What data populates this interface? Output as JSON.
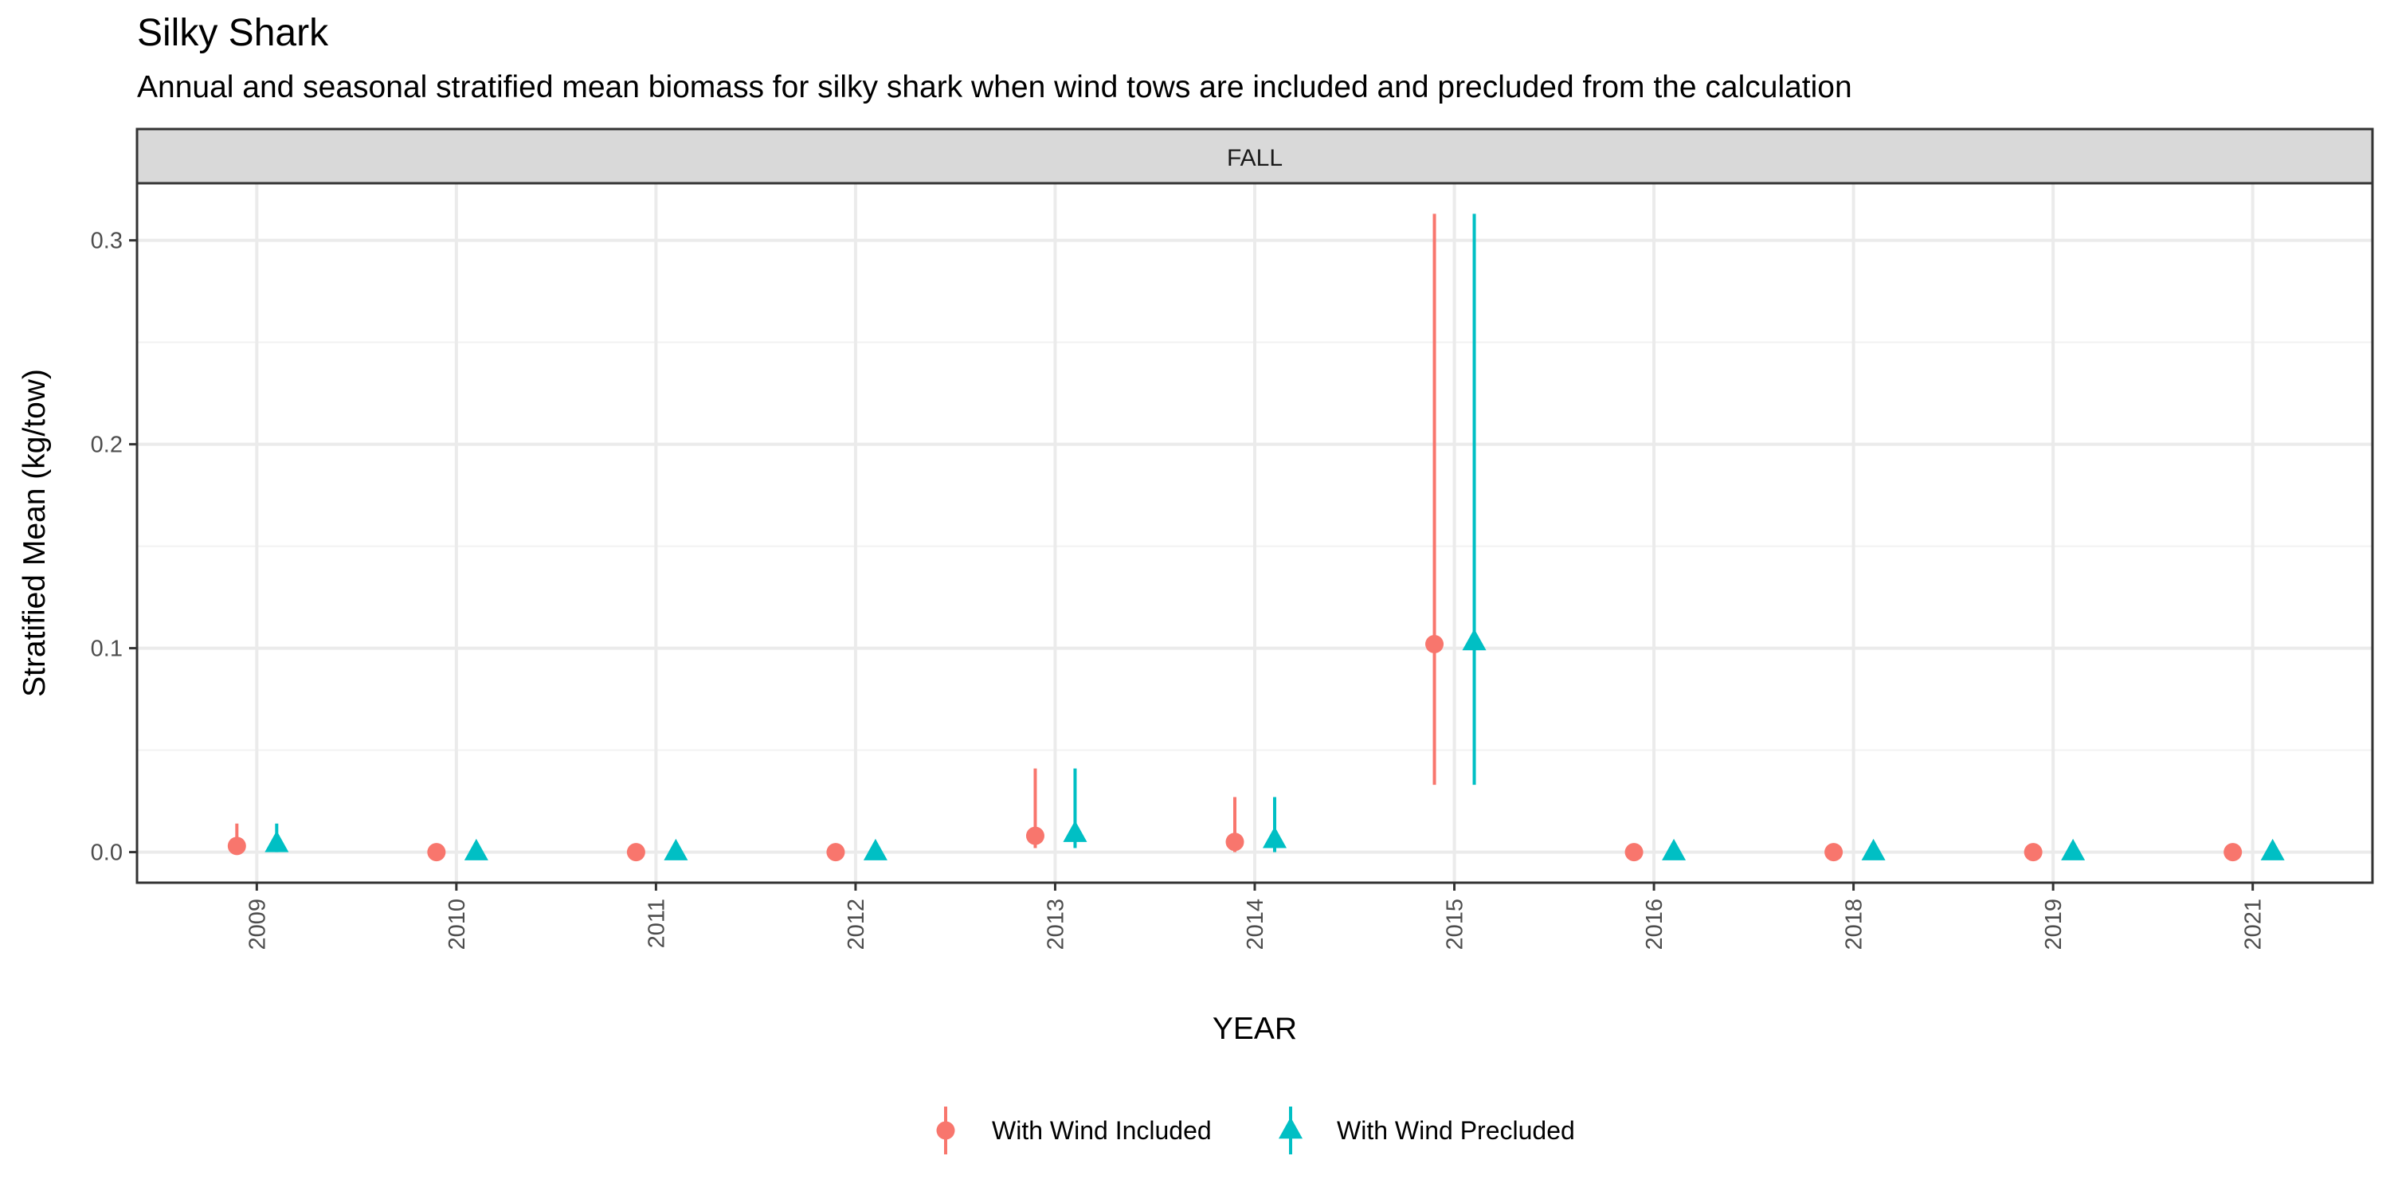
{
  "chart_data": {
    "type": "scatter",
    "title": "Silky Shark",
    "subtitle": "Annual and seasonal stratified mean biomass for silky shark when wind tows are included and precluded from the calculation",
    "facet": "FALL",
    "xlabel": "YEAR",
    "ylabel": "Stratified Mean (kg/tow)",
    "categories": [
      "2009",
      "2010",
      "2011",
      "2012",
      "2013",
      "2014",
      "2015",
      "2016",
      "2018",
      "2019",
      "2021"
    ],
    "ylim": [
      -0.015,
      0.328
    ],
    "yticks": [
      0.0,
      0.1,
      0.2,
      0.3
    ],
    "ytick_labels": [
      "0.0",
      "0.1",
      "0.2",
      "0.3"
    ],
    "grid": true,
    "legend_position": "bottom",
    "series": [
      {
        "name": "With Wind Included",
        "color": "#F8766D",
        "marker": "circle",
        "values": [
          0.003,
          0.0,
          0.0,
          0.0,
          0.008,
          0.005,
          0.102,
          0.0,
          0.0,
          0.0,
          0.0
        ],
        "lower": [
          0.0,
          null,
          null,
          null,
          0.002,
          0.0,
          0.033,
          null,
          null,
          null,
          null
        ],
        "upper": [
          0.014,
          null,
          null,
          null,
          0.041,
          0.027,
          0.313,
          null,
          null,
          null,
          null
        ]
      },
      {
        "name": "With Wind Precluded",
        "color": "#00BFC4",
        "marker": "triangle",
        "values": [
          0.004,
          0.0,
          0.0,
          0.0,
          0.009,
          0.006,
          0.103,
          0.0,
          0.0,
          0.0,
          0.0
        ],
        "lower": [
          0.0,
          null,
          null,
          null,
          0.002,
          0.0,
          0.033,
          null,
          null,
          null,
          null
        ],
        "upper": [
          0.014,
          null,
          null,
          null,
          0.041,
          0.027,
          0.313,
          null,
          null,
          null,
          null
        ]
      }
    ]
  }
}
